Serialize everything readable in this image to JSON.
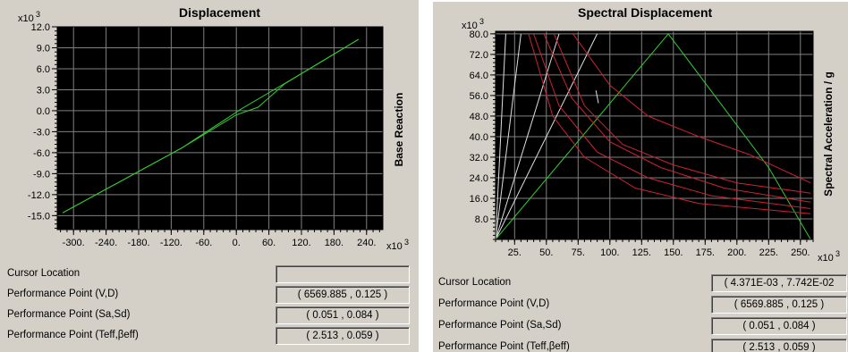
{
  "left_panel": {
    "title": "Displacement",
    "rows": [
      {
        "label": "Cursor Location",
        "value": ""
      },
      {
        "label": "Performance Point (V,D)",
        "value": "( 6569.885 , 0.125 )"
      },
      {
        "label": "Performance Point (Sa,Sd)",
        "value": "( 0.051 , 0.084 )"
      },
      {
        "label": "Performance Point (Teff,βeff)",
        "value": "( 2.513 , 0.059 )"
      }
    ]
  },
  "right_panel": {
    "title": "Spectral Displacement",
    "rows": [
      {
        "label": "Cursor Location",
        "value": "( 4.371E-03 , 7.742E-02"
      },
      {
        "label": "Performance Point (V,D)",
        "value": "( 6569.885 , 0.125 )"
      },
      {
        "label": "Performance Point (Sa,Sd)",
        "value": "( 0.051 , 0.084 )"
      },
      {
        "label": "Performance Point (Teff,βeff)",
        "value": "( 2.513 , 0.059 )"
      }
    ]
  },
  "chart_data": [
    {
      "type": "line",
      "title": "Displacement",
      "ylabel": "Base Reaction",
      "xlabel": "",
      "x_multiplier": "x10^3",
      "y_multiplier": "x10^3",
      "xlim": [
        -330,
        270
      ],
      "ylim": [
        -17,
        12
      ],
      "x_ticks": [
        -300,
        -240,
        -180,
        -120,
        -60,
        0,
        60,
        120,
        180,
        240
      ],
      "x_tick_labels": [
        "-300.",
        "-240.",
        "-180.",
        "-120.",
        "-60.",
        "0.",
        "60.",
        "120.",
        "180.",
        "240."
      ],
      "y_ticks": [
        12,
        9,
        6,
        3,
        0,
        -3,
        -6,
        -9,
        -12,
        -15
      ],
      "y_tick_labels": [
        "12.0",
        "9.0",
        "6.0",
        "3.0",
        "0.0",
        "-3.0",
        "-6.0",
        "-9.0",
        "-12.0",
        "-15.0"
      ],
      "background": "#000000",
      "grid": true,
      "series": [
        {
          "color": "#33cc33",
          "points": [
            [
              -320,
              -14.6
            ],
            [
              -100,
              -5.3
            ],
            [
              10,
              0.3
            ],
            [
              100,
              4.4
            ],
            [
              225,
              10.2
            ]
          ]
        },
        {
          "color": "#33cc33",
          "points": [
            [
              -320,
              -14.6
            ],
            [
              -100,
              -5.3
            ],
            [
              0,
              -0.6
            ],
            [
              40,
              0.5
            ],
            [
              90,
              3.9
            ],
            [
              225,
              10.2
            ]
          ]
        }
      ]
    },
    {
      "type": "line",
      "title": "Spectral Displacement",
      "ylabel": "Spectral Acceleration / g",
      "xlabel": "",
      "x_multiplier": "x10^3",
      "y_multiplier": "x10^3",
      "xlim": [
        10,
        260
      ],
      "ylim": [
        0,
        81
      ],
      "x_ticks": [
        25,
        50,
        75,
        100,
        125,
        150,
        175,
        200,
        225,
        250
      ],
      "x_tick_labels": [
        "25.",
        "50.",
        "75.",
        "100.",
        "125.",
        "150.",
        "175.",
        "200.",
        "225.",
        "250."
      ],
      "y_ticks": [
        80,
        72,
        64,
        56,
        48,
        40,
        32,
        24,
        16,
        8
      ],
      "y_tick_labels": [
        "80.0",
        "72.0",
        "64.0",
        "56.0",
        "48.0",
        "40.0",
        "32.0",
        "24.0",
        "16.0",
        "8.0"
      ],
      "background": "#000000",
      "grid": true,
      "series": [
        {
          "color": "#e0e0e0",
          "points": [
            [
              10,
              0
            ],
            [
              18,
              80
            ]
          ]
        },
        {
          "color": "#e0e0e0",
          "points": [
            [
              10,
              0
            ],
            [
              30,
              80
            ]
          ]
        },
        {
          "color": "#e0e0e0",
          "points": [
            [
              10,
              0
            ],
            [
              60,
              80
            ]
          ]
        },
        {
          "color": "#e0e0e0",
          "points": [
            [
              10,
              0
            ],
            [
              90,
              80
            ]
          ]
        },
        {
          "color": "#33cc33",
          "points": [
            [
              10,
              0
            ],
            [
              146,
              80
            ],
            [
              225,
              28
            ],
            [
              258,
              0
            ]
          ]
        },
        {
          "color": "#cc2233",
          "points": [
            [
              71,
              80
            ],
            [
              100,
              60
            ],
            [
              130,
              48
            ],
            [
              170,
              40
            ],
            [
              210,
              33
            ],
            [
              258,
              22
            ]
          ]
        },
        {
          "color": "#cc2233",
          "points": [
            [
              56,
              80
            ],
            [
              80,
              52
            ],
            [
              110,
              37
            ],
            [
              150,
              29
            ],
            [
              200,
              22
            ],
            [
              258,
              18
            ]
          ]
        },
        {
          "color": "#cc2233",
          "points": [
            [
              48,
              80
            ],
            [
              70,
              55
            ],
            [
              100,
              38
            ],
            [
              140,
              28
            ],
            [
              190,
              20
            ],
            [
              258,
              14.5
            ]
          ]
        },
        {
          "color": "#cc2233",
          "points": [
            [
              40,
              80
            ],
            [
              60,
              52
            ],
            [
              90,
              34
            ],
            [
              130,
              24
            ],
            [
              180,
              17
            ],
            [
              258,
              12
            ]
          ]
        },
        {
          "color": "#cc2233",
          "points": [
            [
              36,
              80
            ],
            [
              55,
              48
            ],
            [
              80,
              32
            ],
            [
              120,
              20
            ],
            [
              170,
              14
            ],
            [
              258,
              10
            ]
          ]
        },
        {
          "color": "#e0e0e0",
          "points": [
            [
              89,
              58
            ],
            [
              91,
              53
            ]
          ]
        }
      ]
    }
  ]
}
